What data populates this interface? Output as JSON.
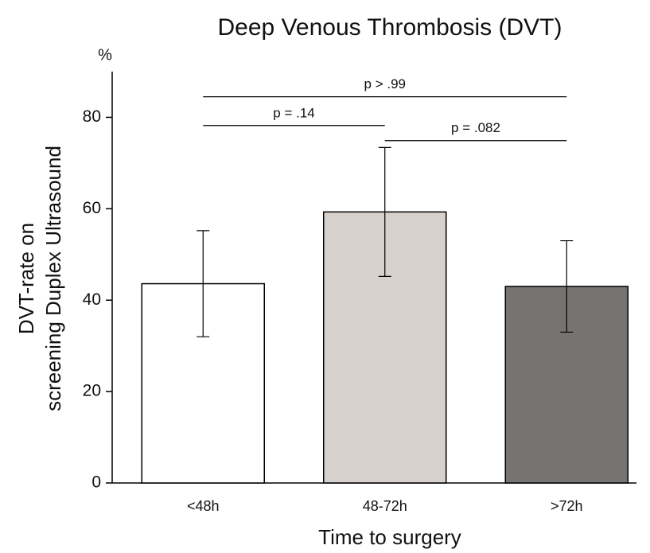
{
  "chart_data": {
    "type": "bar",
    "title": "Deep Venous Thrombosis (DVT)",
    "unit_label": "%",
    "y_label": [
      "DVT-rate on",
      "screening Duplex Ultrasound"
    ],
    "x_label": "Time to surgery",
    "categories": [
      "<48h",
      "48-72h",
      ">72h"
    ],
    "values": [
      43.6,
      59.3,
      43
    ],
    "errors": [
      11.6,
      14.1,
      10
    ],
    "colors": [
      "#ffffff",
      "#d6d1cd",
      "#767370"
    ],
    "ylim": [
      0,
      90
    ],
    "yticks": [
      0,
      20,
      40,
      60,
      80
    ],
    "annotations": [
      {
        "text": "p > .99",
        "from": 0,
        "to": 2,
        "y": 84.5
      },
      {
        "text": "p = .14",
        "from": 0,
        "to": 1,
        "y": 78.2
      },
      {
        "text": "p = .082",
        "from": 1,
        "to": 2,
        "y": 74.9
      }
    ]
  }
}
